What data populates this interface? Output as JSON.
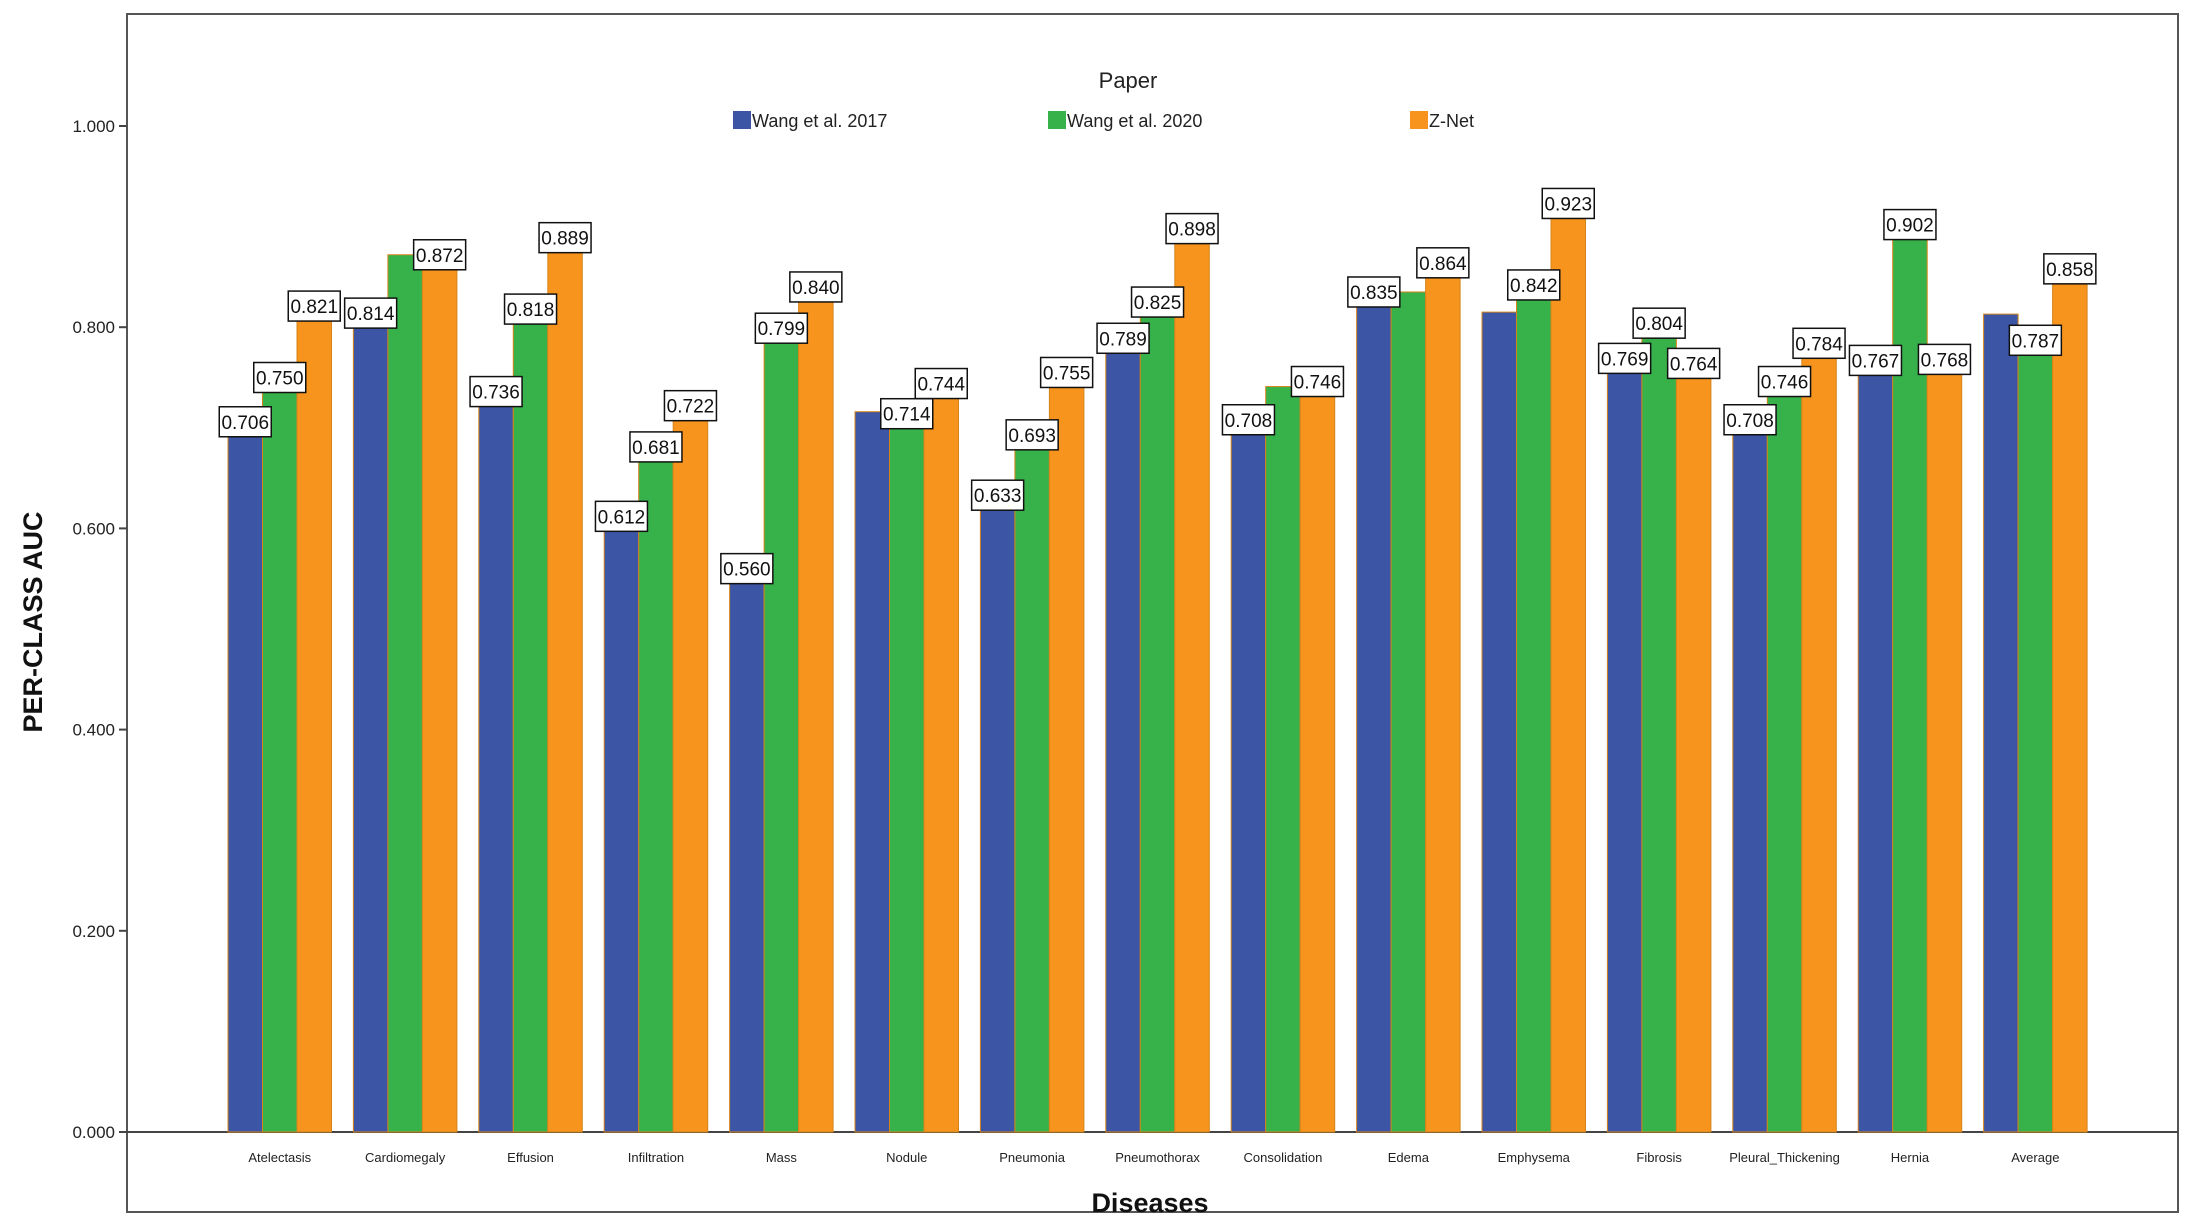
{
  "chart_data": {
    "type": "bar",
    "title": "",
    "xlabel": "Diseases",
    "ylabel": "PER-CLASS AUC",
    "ylim": [
      0,
      1.1
    ],
    "yticks": [
      0.0,
      0.2,
      0.4,
      0.6,
      0.8,
      1.0
    ],
    "ytick_labels": [
      "0.000",
      "0.200",
      "0.400",
      "0.600",
      "0.800",
      "1.000"
    ],
    "legend": {
      "title": "Paper",
      "placement": "top-center"
    },
    "categories": [
      "Atelectasis",
      "Cardiomegaly",
      "Effusion",
      "Infiltration",
      "Mass",
      "Nodule",
      "Pneumonia",
      "Pneumothorax",
      "Consolidation",
      "Edema",
      "Emphysema",
      "Fibrosis",
      "Pleural_Thickening",
      "Hernia",
      "Average"
    ],
    "series": [
      {
        "name": "Wang et al. 2017",
        "color": "#3c55a5",
        "values": [
          0.706,
          0.814,
          0.736,
          0.612,
          0.56,
          0.716,
          0.633,
          0.789,
          0.708,
          0.835,
          0.815,
          0.769,
          0.708,
          0.767,
          0.813
        ],
        "labels": [
          "0.706",
          "0.814",
          "0.736",
          "0.612",
          "0.560",
          "",
          "0.633",
          "0.789",
          "0.708",
          "0.835",
          "",
          "0.769",
          "0.708",
          "0.767",
          ""
        ]
      },
      {
        "name": "Wang et al. 2020",
        "color": "#37b24a",
        "values": [
          0.75,
          0.872,
          0.818,
          0.681,
          0.799,
          0.714,
          0.693,
          0.825,
          0.741,
          0.835,
          0.842,
          0.804,
          0.746,
          0.902,
          0.787
        ],
        "labels": [
          "0.750",
          "",
          "0.818",
          "0.681",
          "0.799",
          "0.714",
          "0.693",
          "0.825",
          "",
          "",
          "0.842",
          "0.804",
          "0.746",
          "0.902",
          "0.787"
        ]
      },
      {
        "name": "Z-Net",
        "color": "#f7941d",
        "values": [
          0.821,
          0.872,
          0.889,
          0.722,
          0.84,
          0.744,
          0.755,
          0.898,
          0.746,
          0.864,
          0.923,
          0.764,
          0.784,
          0.768,
          0.858
        ],
        "labels": [
          "0.821",
          "0.872",
          "0.889",
          "0.722",
          "0.840",
          "0.744",
          "0.755",
          "0.898",
          "0.746",
          "0.864",
          "0.923",
          "0.764",
          "0.784",
          "0.768",
          "0.858"
        ]
      }
    ]
  }
}
